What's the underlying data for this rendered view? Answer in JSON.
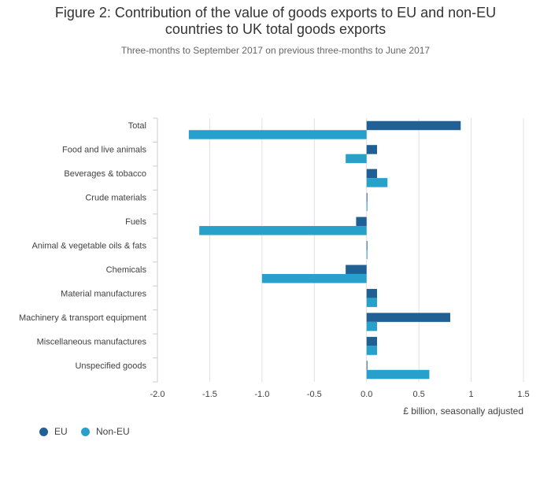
{
  "title_lines": [
    "Figure 2: Contribution of the value of goods exports to EU and non-EU",
    "countries to UK total goods exports"
  ],
  "subtitle": "Three-months to September 2017 on previous three-months to June 2017",
  "colors": {
    "eu": "#206095",
    "non_eu": "#27a0cc",
    "grid": "#e0e0e0",
    "axis": "#cccccc",
    "text": "#414042"
  },
  "chart_data": {
    "type": "bar",
    "orientation": "horizontal",
    "title": "Figure 2: Contribution of the value of goods exports to EU and non-EU countries to UK total goods exports",
    "subtitle": "Three-months to September 2017 on previous three-months to June 2017",
    "categories": [
      "Total",
      "Food and live animals",
      "Beverages & tobacco",
      "Crude materials",
      "Fuels",
      "Animal & vegetable oils & fats",
      "Chemicals",
      "Material manufactures",
      "Machinery & transport equipment",
      "Miscellaneous manufactures",
      "Unspecified goods"
    ],
    "series": [
      {
        "name": "EU",
        "values": [
          0.9,
          0.1,
          0.1,
          0.0,
          -0.1,
          0.0,
          -0.2,
          0.1,
          0.8,
          0.1,
          0.0
        ]
      },
      {
        "name": "Non-EU",
        "values": [
          -1.7,
          -0.2,
          0.2,
          0.0,
          -1.6,
          0.0,
          -1.0,
          0.1,
          0.1,
          0.1,
          0.6
        ]
      }
    ],
    "xlim": [
      -2.0,
      1.5
    ],
    "xticks": [
      -2.0,
      -1.5,
      -1.0,
      -0.5,
      0.0,
      0.5,
      1.0,
      1.5
    ],
    "xtick_labels": [
      "-2.0",
      "-1.5",
      "-1.0",
      "-0.5",
      "0.0",
      "0.5",
      "1",
      "1.5"
    ],
    "xlabel": "£ billion, seasonally adjusted",
    "ylabel": "",
    "grid": true,
    "legend_position": "bottom-left"
  }
}
